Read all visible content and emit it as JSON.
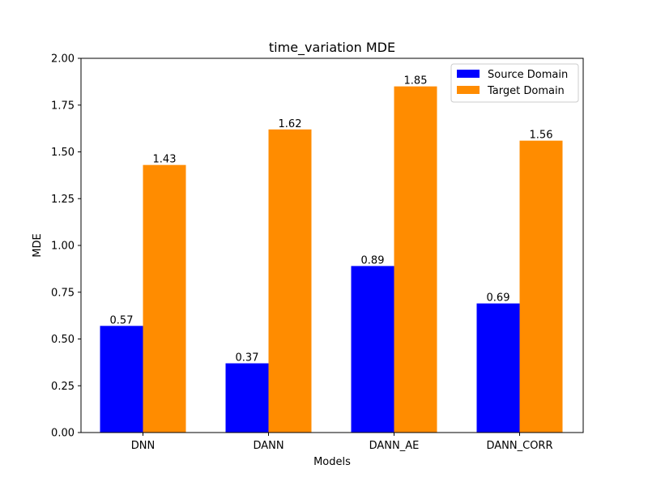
{
  "chart_data": {
    "type": "bar",
    "title": "time_variation MDE",
    "xlabel": "Models",
    "ylabel": "MDE",
    "ylim": [
      0,
      2.0
    ],
    "yticks": [
      "0.00",
      "0.25",
      "0.50",
      "0.75",
      "1.00",
      "1.25",
      "1.50",
      "1.75",
      "2.00"
    ],
    "ytick_values": [
      0,
      0.25,
      0.5,
      0.75,
      1.0,
      1.25,
      1.5,
      1.75,
      2.0
    ],
    "categories": [
      "DNN",
      "DANN",
      "DANN_AE",
      "DANN_CORR"
    ],
    "series": [
      {
        "name": "Source Domain",
        "color": "#0000ff",
        "values": [
          0.57,
          0.37,
          0.89,
          0.69
        ],
        "labels": [
          "0.57",
          "0.37",
          "0.89",
          "0.69"
        ]
      },
      {
        "name": "Target Domain",
        "color": "#ff8c00",
        "values": [
          1.43,
          1.62,
          1.85,
          1.56
        ],
        "labels": [
          "1.43",
          "1.62",
          "1.85",
          "1.56"
        ]
      }
    ],
    "legend_position": "top-right",
    "grid": false
  }
}
